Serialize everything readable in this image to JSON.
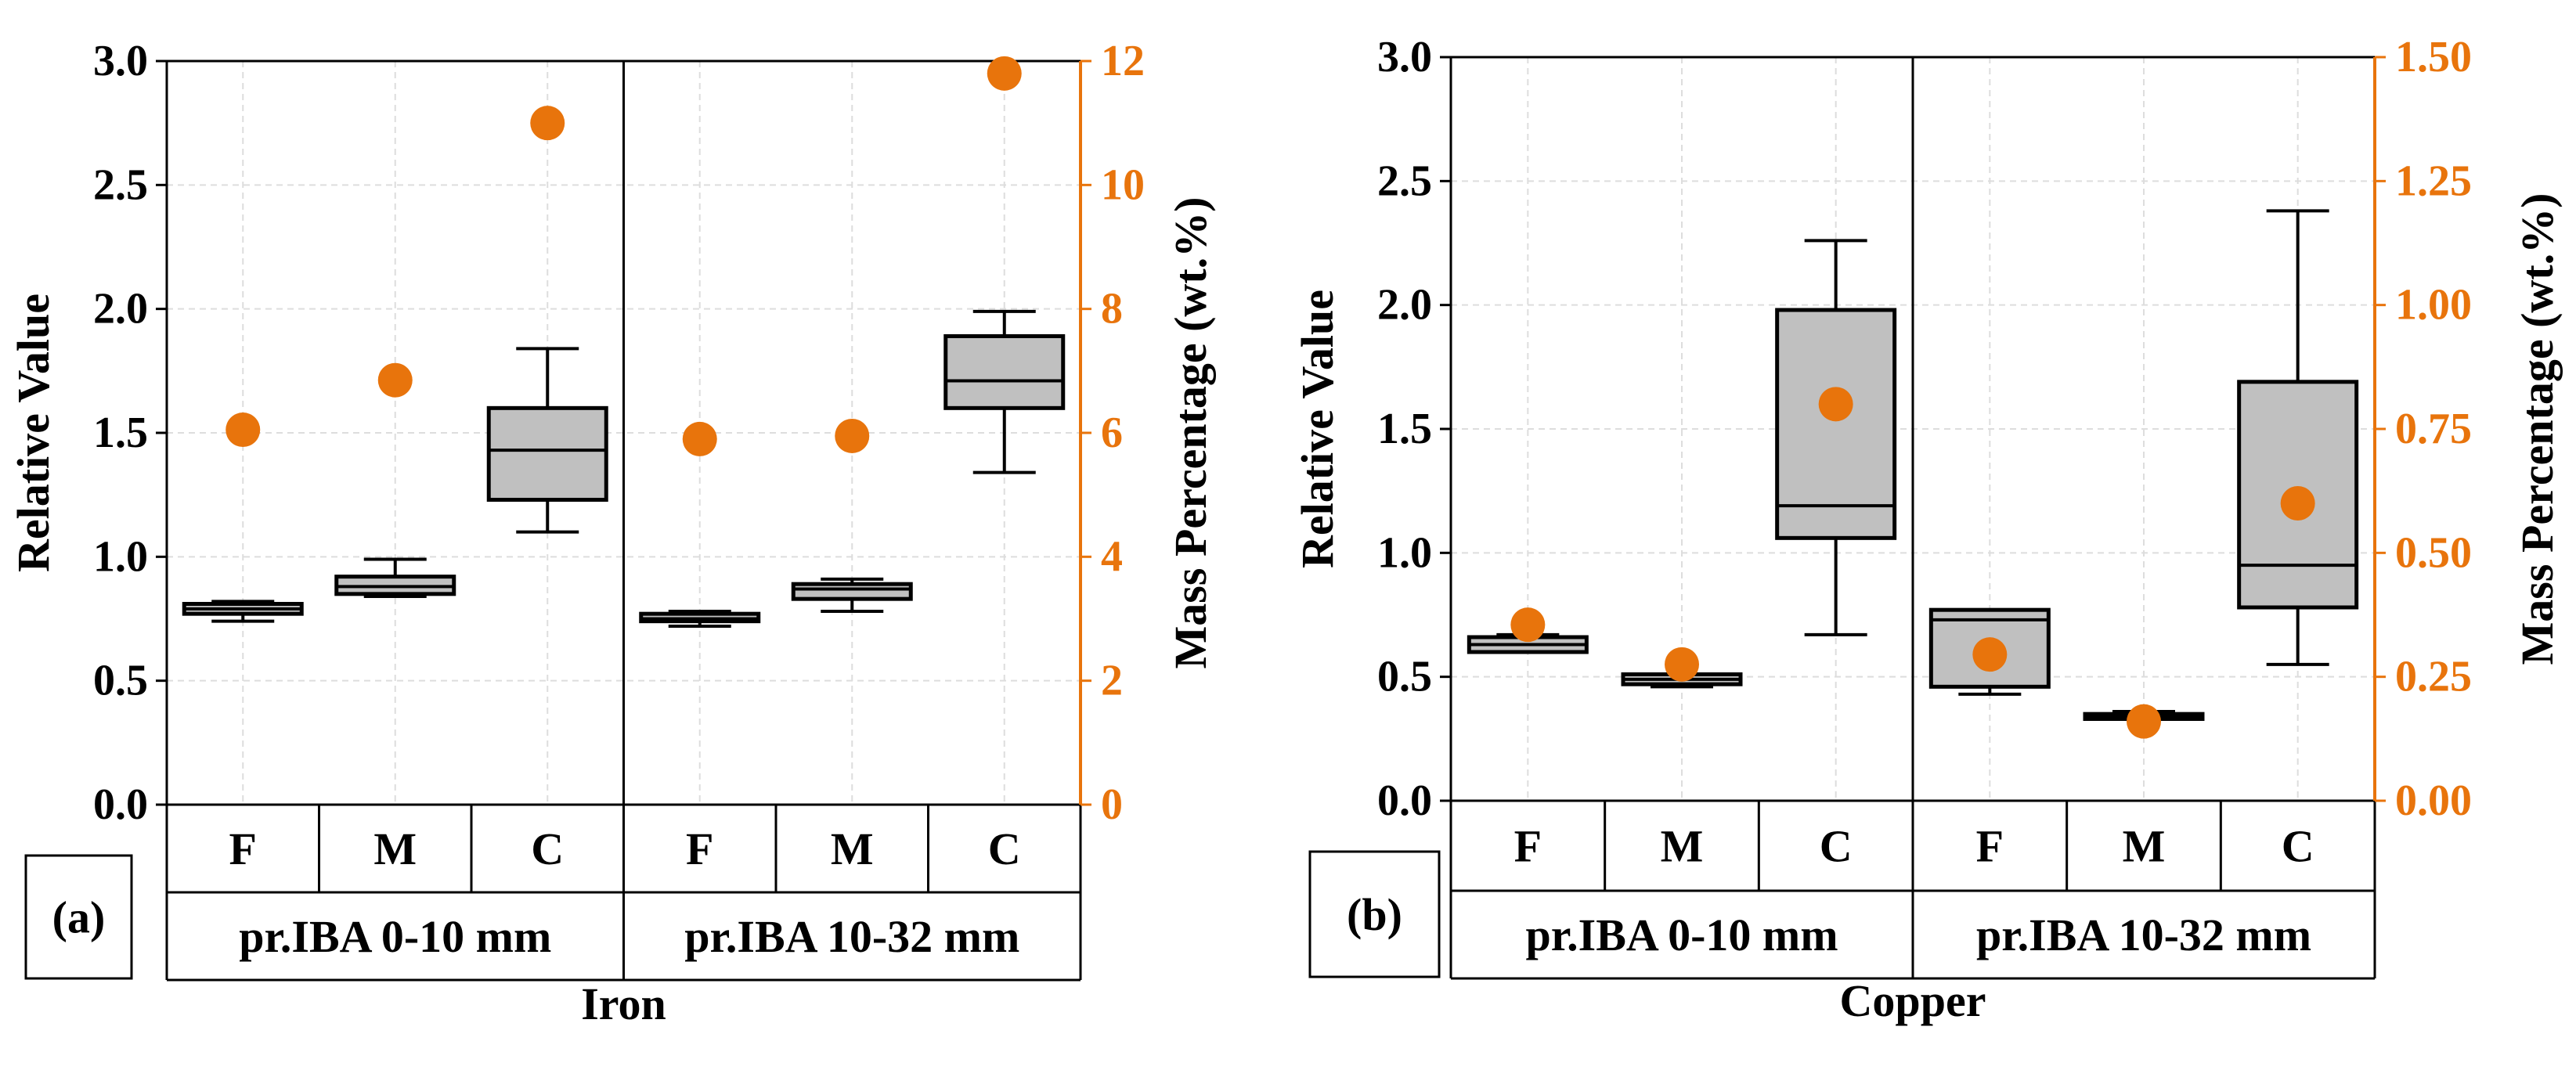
{
  "colors": {
    "axis": "#000000",
    "orange": "#E8740C",
    "box_fill": "#C0C0C0",
    "grid": "#DDDDDD"
  },
  "chart_data": [
    {
      "type": "box",
      "id": "iron",
      "label": "(a)",
      "element_label": "Iron",
      "ylabel_left": "Relative Value",
      "ylabel_right": "Mass Percentage (wt.%)",
      "ylim_left": [
        0,
        3.0
      ],
      "yticks_left": [
        "0.0",
        "0.5",
        "1.0",
        "1.5",
        "2.0",
        "2.5",
        "3.0"
      ],
      "ylim_right": [
        0,
        12
      ],
      "yticks_right": [
        "0",
        "2",
        "4",
        "6",
        "8",
        "10",
        "12"
      ],
      "groups": [
        "pr.IBA 0-10 mm",
        "pr.IBA 10-32 mm"
      ],
      "categories": [
        "F",
        "M",
        "C",
        "F",
        "M",
        "C"
      ],
      "boxes": [
        {
          "category": "F",
          "group": "pr.IBA 0-10 mm",
          "min": 0.74,
          "q1": 0.77,
          "median": 0.79,
          "q3": 0.81,
          "max": 0.82
        },
        {
          "category": "M",
          "group": "pr.IBA 0-10 mm",
          "min": 0.84,
          "q1": 0.85,
          "median": 0.88,
          "q3": 0.92,
          "max": 0.99
        },
        {
          "category": "C",
          "group": "pr.IBA 0-10 mm",
          "min": 1.1,
          "q1": 1.23,
          "median": 1.43,
          "q3": 1.6,
          "max": 1.84
        },
        {
          "category": "F",
          "group": "pr.IBA 10-32 mm",
          "min": 0.72,
          "q1": 0.74,
          "median": 0.75,
          "q3": 0.77,
          "max": 0.78
        },
        {
          "category": "M",
          "group": "pr.IBA 10-32 mm",
          "min": 0.78,
          "q1": 0.83,
          "median": 0.87,
          "q3": 0.89,
          "max": 0.91
        },
        {
          "category": "C",
          "group": "pr.IBA 10-32 mm",
          "min": 1.34,
          "q1": 1.6,
          "median": 1.71,
          "q3": 1.89,
          "max": 1.99
        }
      ],
      "mass_percentage": [
        6.05,
        6.85,
        11.0,
        5.9,
        5.95,
        11.8
      ]
    },
    {
      "type": "box",
      "id": "copper",
      "label": "(b)",
      "element_label": "Copper",
      "ylabel_left": "Relative Value",
      "ylabel_right": "Mass Percentage (wt.%)",
      "ylim_left": [
        0,
        3.0
      ],
      "yticks_left": [
        "0.0",
        "0.5",
        "1.0",
        "1.5",
        "2.0",
        "2.5",
        "3.0"
      ],
      "ylim_right": [
        0,
        1.5
      ],
      "yticks_right": [
        "0.00",
        "0.25",
        "0.50",
        "0.75",
        "1.00",
        "1.25",
        "1.50"
      ],
      "groups": [
        "pr.IBA 0-10 mm",
        "pr.IBA 10-32 mm"
      ],
      "categories": [
        "F",
        "M",
        "C",
        "F",
        "M",
        "C"
      ],
      "boxes": [
        {
          "category": "F",
          "group": "pr.IBA 0-10 mm",
          "min": 0.6,
          "q1": 0.6,
          "median": 0.63,
          "q3": 0.66,
          "max": 0.67
        },
        {
          "category": "M",
          "group": "pr.IBA 0-10 mm",
          "min": 0.46,
          "q1": 0.47,
          "median": 0.49,
          "q3": 0.51,
          "max": 0.51
        },
        {
          "category": "C",
          "group": "pr.IBA 0-10 mm",
          "min": 0.67,
          "q1": 1.06,
          "median": 1.19,
          "q3": 1.98,
          "max": 2.26
        },
        {
          "category": "F",
          "group": "pr.IBA 10-32 mm",
          "min": 0.43,
          "q1": 0.46,
          "median": 0.73,
          "q3": 0.77,
          "max": 0.77
        },
        {
          "category": "M",
          "group": "pr.IBA 10-32 mm",
          "min": 0.33,
          "q1": 0.33,
          "median": 0.34,
          "q3": 0.35,
          "max": 0.36
        },
        {
          "category": "C",
          "group": "pr.IBA 10-32 mm",
          "min": 0.55,
          "q1": 0.78,
          "median": 0.95,
          "q3": 1.69,
          "max": 2.38
        }
      ],
      "mass_percentage": [
        0.355,
        0.275,
        0.8,
        0.295,
        0.16,
        0.6
      ]
    }
  ]
}
